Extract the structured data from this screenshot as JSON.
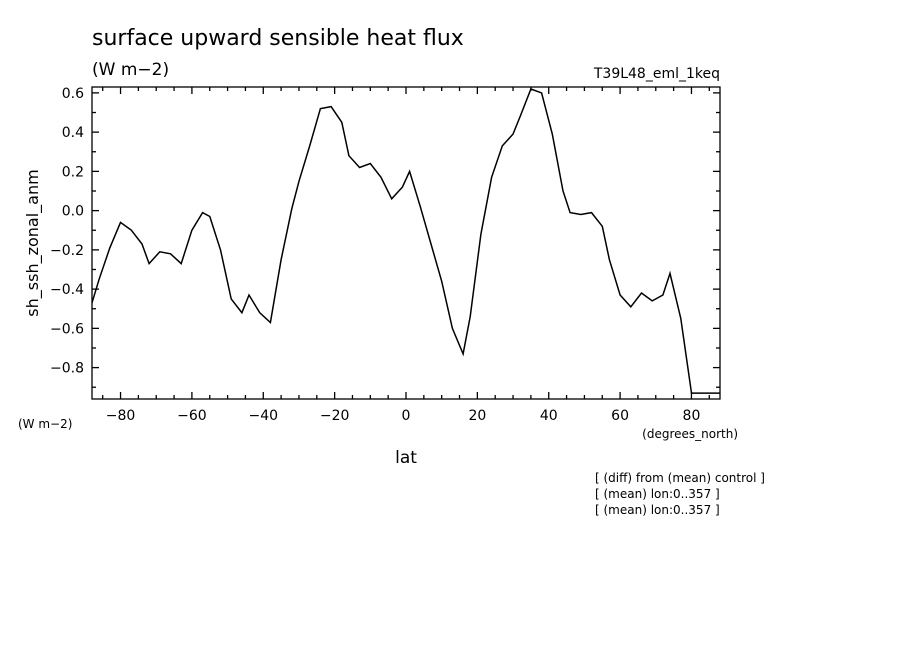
{
  "chart_data": {
    "type": "line",
    "title": "surface upward sensible heat flux",
    "units_top": "(W m−2)",
    "dataset": "T39L48_eml_1keq",
    "ylabel": "sh_ssh_zonal_anm",
    "y_units": "(W m−2)",
    "xlabel": "lat",
    "x_units": "(degrees_north)",
    "notes": [
      "[ (diff) from (mean) control ]",
      "[ (mean) lon:0..357 ]",
      "[ (mean) lon:0..357 ]"
    ],
    "xlim": [
      -88,
      88
    ],
    "ylim": [
      -0.96,
      0.63
    ],
    "x_ticks": [
      -80,
      -60,
      -40,
      -20,
      0,
      20,
      40,
      60,
      80
    ],
    "x_tick_labels": [
      "−80",
      "−60",
      "−40",
      "−20",
      "0",
      "20",
      "40",
      "60",
      "80"
    ],
    "y_ticks": [
      -0.8,
      -0.6,
      -0.4,
      -0.2,
      0.0,
      0.2,
      0.4,
      0.6
    ],
    "y_tick_labels": [
      "−0.8",
      "−0.6",
      "−0.4",
      "−0.2",
      "0.0",
      "0.2",
      "0.4",
      "0.6"
    ],
    "grid": false,
    "series": [
      {
        "x": [
          -88,
          -86,
          -83,
          -80,
          -77,
          -74,
          -72,
          -69,
          -66,
          -63,
          -60,
          -57,
          -55,
          -52,
          -49,
          -46,
          -44,
          -41,
          -38,
          -35,
          -32,
          -30,
          -27,
          -24,
          -21,
          -18,
          -16,
          -13,
          -10,
          -7,
          -4,
          -1,
          1,
          4,
          7,
          10,
          13,
          16,
          18,
          21,
          24,
          27,
          30,
          32,
          35,
          38,
          41,
          44,
          46,
          49,
          52,
          55,
          57,
          60,
          63,
          66,
          69,
          72,
          74,
          77,
          80,
          83,
          86,
          88
        ],
        "y": [
          -0.47,
          -0.35,
          -0.19,
          -0.06,
          -0.1,
          -0.17,
          -0.27,
          -0.21,
          -0.22,
          -0.27,
          -0.1,
          -0.01,
          -0.03,
          -0.2,
          -0.45,
          -0.52,
          -0.43,
          -0.52,
          -0.57,
          -0.25,
          0.01,
          0.15,
          0.33,
          0.52,
          0.53,
          0.45,
          0.28,
          0.22,
          0.24,
          0.17,
          0.06,
          0.12,
          0.2,
          0.02,
          -0.17,
          -0.36,
          -0.6,
          -0.73,
          -0.54,
          -0.12,
          0.17,
          0.33,
          0.39,
          0.48,
          0.62,
          0.6,
          0.39,
          0.1,
          -0.01,
          -0.02,
          -0.01,
          -0.08,
          -0.25,
          -0.43,
          -0.49,
          -0.42,
          -0.46,
          -0.43,
          -0.32,
          -0.55,
          -0.93,
          -0.93,
          -0.93,
          -0.93
        ]
      }
    ]
  }
}
